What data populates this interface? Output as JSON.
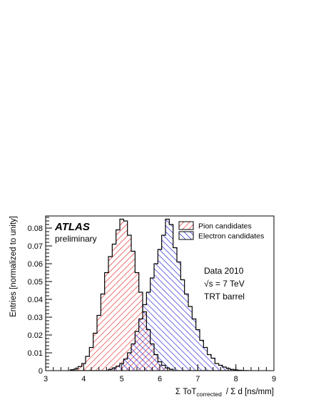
{
  "chart_data": {
    "type": "histogram",
    "logo": "ATLAS",
    "logo_sub": "preliminary",
    "xlabel": {
      "pre": "Σ ToT",
      "sub": "corrected",
      "post": "/ Σ d  [ns/mm]"
    },
    "ylabel": "Entries  [normalized to unity]",
    "xlim": [
      3,
      9
    ],
    "ylim": [
      0,
      0.0868
    ],
    "x_ticks": [
      3,
      4,
      5,
      6,
      7,
      8,
      9
    ],
    "y_ticks": [
      0,
      0.01,
      0.02,
      0.03,
      0.04,
      0.05,
      0.06,
      0.07,
      0.08
    ],
    "y_tick_labels": [
      "0",
      "0.01",
      "0.02",
      "0.03",
      "0.04",
      "0.05",
      "0.06",
      "0.07",
      "0.08"
    ],
    "annotations": [
      "Data 2010",
      "√s = 7 TeV",
      "TRT barrel"
    ],
    "legend": {
      "placement": "top-right"
    },
    "bin_width": 0.1,
    "x": [
      3.7,
      3.8,
      3.9,
      4.0,
      4.1,
      4.2,
      4.3,
      4.4,
      4.5,
      4.6,
      4.7,
      4.8,
      4.9,
      5.0,
      5.1,
      5.2,
      5.3,
      5.4,
      5.5,
      5.6,
      5.7,
      5.8,
      5.9,
      6.0,
      6.1,
      6.2,
      6.3,
      6.4,
      6.5,
      6.6,
      6.7,
      6.8,
      6.9,
      7.0,
      7.1,
      7.2,
      7.3,
      7.4,
      7.5,
      7.6,
      7.7,
      7.8,
      7.9,
      8.0,
      8.1,
      8.2,
      8.3
    ],
    "series": [
      {
        "name": "Pion candidates",
        "color": "#e63232",
        "values": [
          0.0005,
          0.001,
          0.0023,
          0.004,
          0.008,
          0.013,
          0.021,
          0.031,
          0.043,
          0.055,
          0.064,
          0.071,
          0.079,
          0.085,
          0.084,
          0.076,
          0.067,
          0.055,
          0.044,
          0.033,
          0.023,
          0.015,
          0.009,
          0.005,
          0.003,
          0.0015,
          0.0008,
          0,
          0,
          0,
          0,
          0,
          0,
          0,
          0,
          0,
          0,
          0,
          0,
          0,
          0,
          0,
          0,
          0,
          0,
          0,
          0
        ]
      },
      {
        "name": "Electron candidates",
        "color": "#2525d8",
        "values": [
          0,
          0,
          0,
          0,
          0,
          0,
          0,
          0,
          0,
          0,
          0.0007,
          0.0015,
          0.0025,
          0.004,
          0.0065,
          0.01,
          0.015,
          0.022,
          0.029,
          0.037,
          0.044,
          0.052,
          0.06,
          0.068,
          0.076,
          0.085,
          0.082,
          0.069,
          0.061,
          0.051,
          0.043,
          0.036,
          0.029,
          0.023,
          0.017,
          0.013,
          0.009,
          0.007,
          0.004,
          0.003,
          0.002,
          0.0012,
          0.0007,
          0.0004,
          0.0002,
          0,
          0
        ]
      }
    ]
  }
}
